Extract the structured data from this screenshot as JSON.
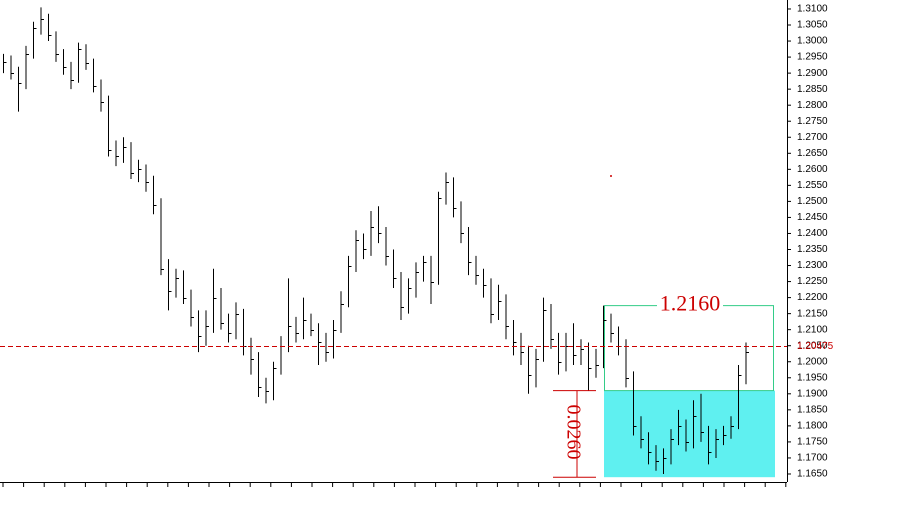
{
  "chart_data": {
    "type": "ohlc",
    "color": "#000000",
    "categories": [
      null,
      null,
      null,
      null,
      null,
      null,
      null,
      null,
      null,
      null,
      null,
      null,
      null,
      null,
      null,
      null,
      null,
      null,
      null,
      null,
      null,
      null,
      null,
      null,
      null,
      null,
      null,
      null,
      null,
      null,
      null,
      null,
      null,
      null,
      null,
      null,
      null,
      null,
      null,
      null,
      null,
      null,
      null,
      null,
      null,
      null,
      null,
      null,
      null,
      null,
      null,
      null,
      null,
      null,
      null,
      null,
      null,
      null,
      null,
      null,
      null,
      null,
      null,
      null,
      null,
      null,
      null,
      null,
      null,
      null,
      null,
      null,
      null,
      null,
      null,
      null,
      null,
      null,
      null,
      null,
      null,
      null,
      null,
      null,
      null,
      null,
      null,
      null,
      null,
      null,
      null,
      null,
      null,
      null,
      null,
      null,
      null,
      null,
      null,
      null
    ],
    "high": [
      1.296,
      1.2955,
      1.292,
      1.2985,
      1.306,
      1.3105,
      1.3085,
      1.303,
      1.2975,
      1.2935,
      1.2995,
      1.299,
      1.2945,
      1.288,
      1.283,
      1.269,
      1.27,
      1.2685,
      1.263,
      1.2615,
      1.258,
      1.251,
      1.232,
      1.229,
      1.2285,
      1.2225,
      1.216,
      1.216,
      1.229,
      1.223,
      1.215,
      1.2185,
      1.2165,
      1.2075,
      1.203,
      1.195,
      1.2,
      1.208,
      1.226,
      1.214,
      1.22,
      1.215,
      1.212,
      1.209,
      1.213,
      1.222,
      1.233,
      1.241,
      1.24,
      1.247,
      1.2485,
      1.242,
      1.235,
      1.228,
      1.226,
      1.231,
      1.233,
      1.233,
      1.253,
      1.259,
      1.2575,
      1.25,
      1.242,
      1.233,
      1.229,
      1.226,
      1.224,
      1.221,
      1.213,
      1.209,
      1.205,
      1.204,
      1.22,
      1.218,
      1.209,
      1.209,
      1.212,
      1.207,
      1.206,
      1.204,
      1.2175,
      1.215,
      1.211,
      1.207,
      1.197,
      1.183,
      1.178,
      1.174,
      1.173,
      1.179,
      1.185,
      1.182,
      1.188,
      1.19,
      1.18,
      1.179,
      1.18,
      1.183,
      1.199,
      1.206
    ],
    "low": [
      1.29,
      1.288,
      1.278,
      1.285,
      1.2945,
      1.302,
      1.3,
      1.2935,
      1.2895,
      1.285,
      1.287,
      1.291,
      1.284,
      1.278,
      1.264,
      1.261,
      1.262,
      1.257,
      1.256,
      1.253,
      1.246,
      1.227,
      1.216,
      1.22,
      1.218,
      1.211,
      1.203,
      1.205,
      1.209,
      1.21,
      1.206,
      1.207,
      1.202,
      1.196,
      1.189,
      1.187,
      1.188,
      1.196,
      1.203,
      1.206,
      1.207,
      1.208,
      1.199,
      1.2,
      1.201,
      1.209,
      1.217,
      1.228,
      1.232,
      1.233,
      1.237,
      1.23,
      1.223,
      1.213,
      1.215,
      1.22,
      1.225,
      1.218,
      1.224,
      1.249,
      1.245,
      1.237,
      1.227,
      1.224,
      1.22,
      1.212,
      1.213,
      1.207,
      1.202,
      1.199,
      1.19,
      1.192,
      1.2,
      1.204,
      1.196,
      1.197,
      1.199,
      1.199,
      1.191,
      1.195,
      1.198,
      1.206,
      1.202,
      1.192,
      1.177,
      1.173,
      1.168,
      1.166,
      1.165,
      1.168,
      1.174,
      1.172,
      1.173,
      1.175,
      1.168,
      1.17,
      1.174,
      1.176,
      1.179,
      1.193
    ],
    "close": [
      1.2935,
      1.29,
      1.287,
      1.296,
      1.304,
      1.307,
      1.302,
      1.296,
      1.292,
      1.288,
      1.2975,
      1.293,
      1.286,
      1.281,
      1.266,
      1.264,
      1.267,
      1.259,
      1.26,
      1.256,
      1.249,
      1.229,
      1.222,
      1.226,
      1.22,
      1.214,
      1.208,
      1.211,
      1.22,
      1.212,
      1.209,
      1.215,
      1.205,
      1.201,
      1.192,
      1.191,
      1.198,
      1.205,
      1.211,
      1.209,
      1.213,
      1.21,
      1.206,
      1.203,
      1.21,
      1.218,
      1.23,
      1.238,
      1.235,
      1.242,
      1.24,
      1.233,
      1.226,
      1.217,
      1.223,
      1.228,
      1.231,
      1.225,
      1.251,
      1.256,
      1.248,
      1.24,
      1.231,
      1.227,
      1.224,
      1.215,
      1.219,
      1.211,
      1.206,
      1.203,
      1.196,
      1.201,
      1.216,
      1.207,
      1.2,
      1.205,
      1.202,
      1.204,
      1.198,
      1.199,
      1.213,
      1.209,
      1.205,
      1.195,
      1.18,
      1.176,
      1.172,
      1.169,
      1.17,
      1.176,
      1.18,
      1.175,
      1.183,
      1.178,
      1.172,
      1.176,
      1.177,
      1.18,
      1.196,
      1.203
    ],
    "ylim": [
      1.1625,
      1.3128
    ],
    "yticks": [
      {
        "value": 1.165,
        "label": "1.1650"
      },
      {
        "value": 1.17,
        "label": "1.1700"
      },
      {
        "value": 1.175,
        "label": "1.1750"
      },
      {
        "value": 1.18,
        "label": "1.1800"
      },
      {
        "value": 1.185,
        "label": "1.1850"
      },
      {
        "value": 1.19,
        "label": "1.1900"
      },
      {
        "value": 1.195,
        "label": "1.1950"
      },
      {
        "value": 1.2,
        "label": "1.2000"
      },
      {
        "value": 1.205,
        "label": "1.2050"
      },
      {
        "value": 1.21,
        "label": "1.2100"
      },
      {
        "value": 1.215,
        "label": "1.2150"
      },
      {
        "value": 1.22,
        "label": "1.2200"
      },
      {
        "value": 1.225,
        "label": "1.2250"
      },
      {
        "value": 1.23,
        "label": "1.2300"
      },
      {
        "value": 1.235,
        "label": "1.2350"
      },
      {
        "value": 1.24,
        "label": "1.2400"
      },
      {
        "value": 1.245,
        "label": "1.2450"
      },
      {
        "value": 1.25,
        "label": "1.2500"
      },
      {
        "value": 1.255,
        "label": "1.2550"
      },
      {
        "value": 1.26,
        "label": "1.2600"
      },
      {
        "value": 1.265,
        "label": "1.2650"
      },
      {
        "value": 1.27,
        "label": "1.2700"
      },
      {
        "value": 1.275,
        "label": "1.2750"
      },
      {
        "value": 1.28,
        "label": "1.2800"
      },
      {
        "value": 1.285,
        "label": "1.2850"
      },
      {
        "value": 1.29,
        "label": "1.2900"
      },
      {
        "value": 1.295,
        "label": "1.2950"
      },
      {
        "value": 1.3,
        "label": "1.3000"
      },
      {
        "value": 1.305,
        "label": "1.3050"
      },
      {
        "value": 1.31,
        "label": "1.3100"
      }
    ],
    "price_line": {
      "value": 1.20475,
      "label": "1.20475",
      "color": "#cc0000"
    },
    "annotations": [
      {
        "label": "1.2160",
        "high": 1.2175,
        "low": 1.191,
        "color": "#33cc88"
      },
      {
        "label": "0.0260",
        "high": 1.191,
        "low": 1.164,
        "color": "#5ff0f0"
      }
    ]
  }
}
